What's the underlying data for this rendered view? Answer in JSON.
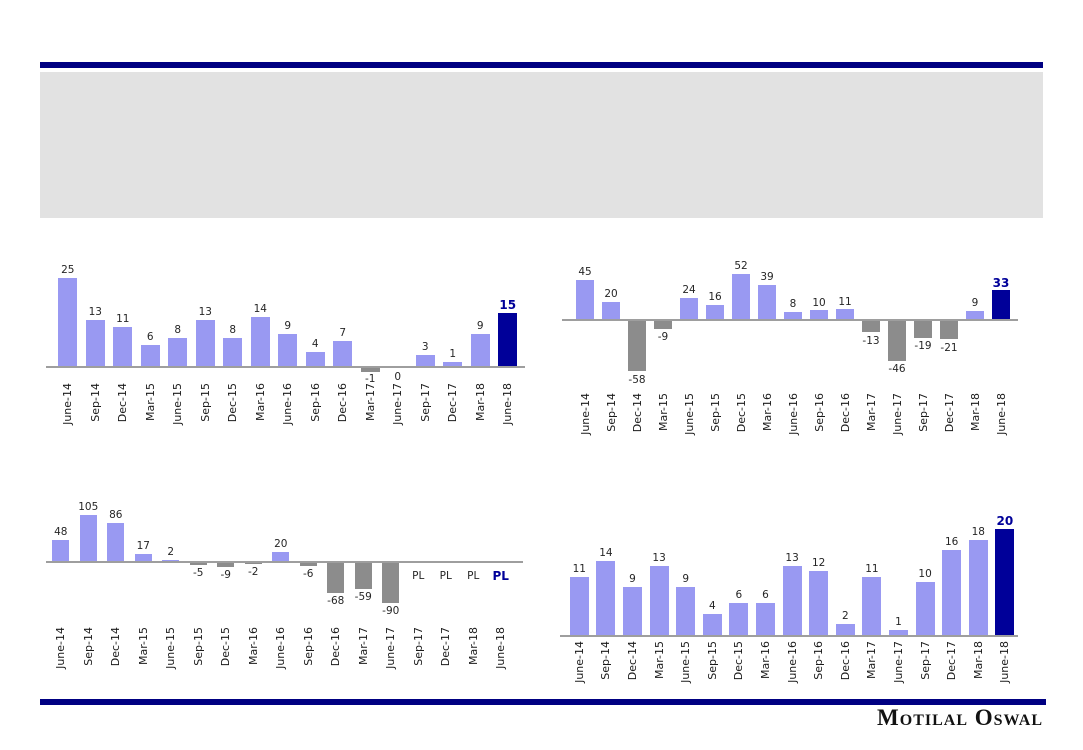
{
  "slide": {
    "brand_text": "Motilal Oswal",
    "title_placeholder": "",
    "accent_color": "#000082",
    "title_box_color": "#e2e2e2"
  },
  "chart_data": [
    {
      "type": "bar",
      "title": "",
      "position": "top-left",
      "categories": [
        "June-14",
        "Sep-14",
        "Dec-14",
        "Mar-15",
        "June-15",
        "Sep-15",
        "Dec-15",
        "Mar-16",
        "June-16",
        "Sep-16",
        "Dec-16",
        "Mar-17",
        "June-17",
        "Sep-17",
        "Dec-17",
        "Mar-18",
        "June-18"
      ],
      "values": [
        25,
        13,
        11,
        6,
        8,
        13,
        8,
        14,
        9,
        4,
        7,
        -1,
        0,
        3,
        1,
        9,
        15
      ],
      "highlight_index": 16,
      "positive_color": "#9999F2",
      "negative_color": "#8C8C8C",
      "highlight_color": "#000099",
      "axis_color": "#9E9E9E",
      "gridlines": false,
      "legend": "none",
      "xlabel": "",
      "ylabel": ""
    },
    {
      "type": "bar",
      "title": "",
      "position": "top-right",
      "categories": [
        "June-14",
        "Sep-14",
        "Dec-14",
        "Mar-15",
        "June-15",
        "Sep-15",
        "Dec-15",
        "Mar-16",
        "June-16",
        "Sep-16",
        "Dec-16",
        "Mar-17",
        "June-17",
        "Sep-17",
        "Dec-17",
        "Mar-18",
        "June-18"
      ],
      "values": [
        45,
        20,
        -58,
        -9,
        24,
        16,
        52,
        39,
        8,
        10,
        11,
        -13,
        -46,
        -19,
        -21,
        9,
        33
      ],
      "highlight_index": 16,
      "positive_color": "#9999F2",
      "negative_color": "#8C8C8C",
      "highlight_color": "#000099",
      "axis_color": "#9E9E9E",
      "gridlines": false,
      "legend": "none",
      "xlabel": "",
      "ylabel": ""
    },
    {
      "type": "bar",
      "title": "",
      "position": "bottom-left",
      "categories": [
        "June-14",
        "Sep-14",
        "Dec-14",
        "Mar-15",
        "June-15",
        "Sep-15",
        "Dec-15",
        "Mar-16",
        "June-16",
        "Sep-16",
        "Dec-16",
        "Mar-17",
        "June-17",
        "Sep-17",
        "Dec-17",
        "Mar-18",
        "June-18"
      ],
      "values": [
        48,
        105,
        86,
        17,
        2,
        -5,
        -9,
        -2,
        20,
        -6,
        -68,
        -59,
        -90,
        "PL",
        "PL",
        "PL",
        "PL"
      ],
      "highlight_index": 16,
      "positive_color": "#9999F2",
      "negative_color": "#8C8C8C",
      "highlight_color": "#000099",
      "axis_color": "#9E9E9E",
      "gridlines": false,
      "legend": "none",
      "xlabel": "",
      "ylabel": ""
    },
    {
      "type": "bar",
      "title": "",
      "position": "bottom-right",
      "categories": [
        "June-14",
        "Sep-14",
        "Dec-14",
        "Mar-15",
        "June-15",
        "Sep-15",
        "Dec-15",
        "Mar-16",
        "June-16",
        "Sep-16",
        "Dec-16",
        "Mar-17",
        "June-17",
        "Sep-17",
        "Dec-17",
        "Mar-18",
        "June-18"
      ],
      "values": [
        11,
        14,
        9,
        13,
        9,
        4,
        6,
        6,
        13,
        12,
        2,
        11,
        1,
        10,
        16,
        18,
        20
      ],
      "highlight_index": 16,
      "positive_color": "#9999F2",
      "negative_color": "#8C8C8C",
      "highlight_color": "#000099",
      "axis_color": "#9E9E9E",
      "gridlines": false,
      "legend": "none",
      "xlabel": "",
      "ylabel": ""
    }
  ]
}
